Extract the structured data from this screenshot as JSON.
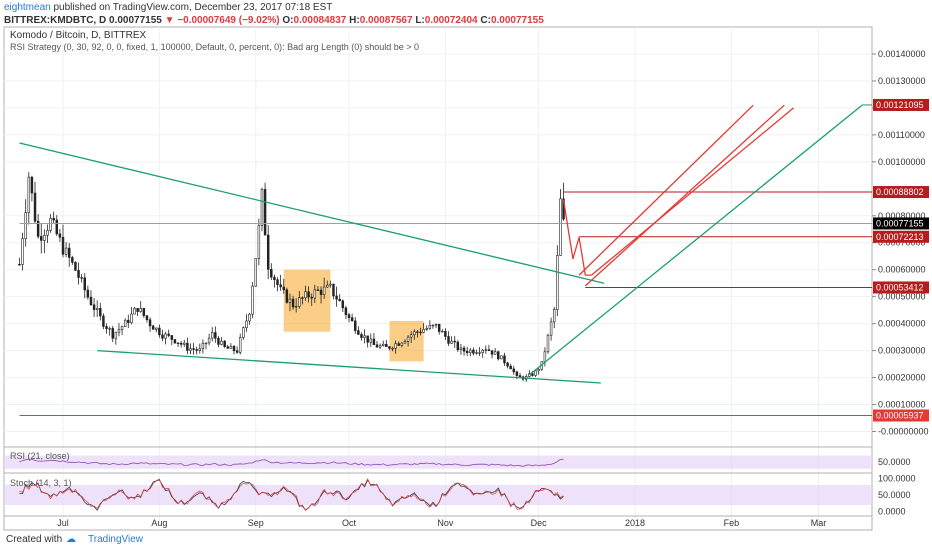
{
  "header": {
    "username": "eightmean",
    "published_text": "published on TradingView.com, December 23, 2017 07:18 EST",
    "symbol_line": "BITTREX:KMDBTC, D",
    "last": "0.00077155",
    "change": "−0.00007649 (−9.02%)",
    "o_label": "O:",
    "o_value": "0.00084837",
    "h_label": "H:",
    "h_value": "0.00087567",
    "l_label": "L:",
    "l_value": "0.00072404",
    "c_label": "C:",
    "c_value": "0.00077155"
  },
  "chart_data": {
    "type": "candlestick",
    "title": "Komodo / Bitcoin, D, BITTREX",
    "subtitle": "RSI Strategy (0, 30, 92, 0, 0, fixed, 1, 100000, Default, 0, percent, 0): Bad arg Length (0) should be > 0",
    "x_ticks": [
      "Jul",
      "Aug",
      "Sep",
      "Oct",
      "Nov",
      "Dec",
      "2018",
      "Feb",
      "Mar"
    ],
    "x_tick_days": [
      14,
      45,
      76,
      106,
      137,
      167,
      198,
      229,
      257
    ],
    "ylim": [
      -5e-05,
      0.0015
    ],
    "y_ticks": [
      "0.00140000",
      "0.00130000",
      "0.00120000",
      "0.00110000",
      "0.00100000",
      "0.00080000",
      "0.00070000",
      "0.00060000",
      "0.00050000",
      "0.00040000",
      "0.00030000",
      "0.00020000",
      "0.00010000",
      "-0.00000000"
    ],
    "y_tick_values": [
      0.0014,
      0.0013,
      0.0012,
      0.0011,
      0.001,
      0.0008,
      0.0007,
      0.0006,
      0.0005,
      0.0004,
      0.0003,
      0.0002,
      0.0001,
      0.0
    ],
    "price_labels": [
      {
        "text": "0.00121095",
        "value": 0.00121095,
        "color": "#b71c1c"
      },
      {
        "text": "0.00088802",
        "value": 0.00088802,
        "color": "#b71c1c"
      },
      {
        "text": "0.00077155",
        "value": 0.00077155,
        "color": "#000000"
      },
      {
        "text": "0.00072213",
        "value": 0.00072213,
        "color": "#b71c1c"
      },
      {
        "text": "0.00053412",
        "value": 0.00053412,
        "color": "#b71c1c"
      },
      {
        "text": "0.00005937",
        "value": 5.937e-05,
        "color": "#e53935"
      }
    ],
    "close_anchors": [
      [
        0,
        0.00062
      ],
      [
        3,
        0.00095
      ],
      [
        6,
        0.00072
      ],
      [
        10,
        0.00078
      ],
      [
        14,
        0.00068
      ],
      [
        18,
        0.0006
      ],
      [
        22,
        0.0005
      ],
      [
        26,
        0.00042
      ],
      [
        30,
        0.00036
      ],
      [
        34,
        0.0004
      ],
      [
        38,
        0.00046
      ],
      [
        42,
        0.0004
      ],
      [
        46,
        0.00036
      ],
      [
        50,
        0.00034
      ],
      [
        54,
        0.00031
      ],
      [
        58,
        0.0003
      ],
      [
        62,
        0.00036
      ],
      [
        66,
        0.00031
      ],
      [
        70,
        0.0003
      ],
      [
        74,
        0.00045
      ],
      [
        77,
        0.00075
      ],
      [
        78,
        0.00087
      ],
      [
        80,
        0.00062
      ],
      [
        84,
        0.00052
      ],
      [
        88,
        0.00047
      ],
      [
        92,
        0.0005
      ],
      [
        96,
        0.00052
      ],
      [
        100,
        0.00053
      ],
      [
        103,
        0.00048
      ],
      [
        106,
        0.00042
      ],
      [
        110,
        0.00036
      ],
      [
        114,
        0.00032
      ],
      [
        118,
        0.00031
      ],
      [
        122,
        0.00033
      ],
      [
        126,
        0.00036
      ],
      [
        130,
        0.00038
      ],
      [
        134,
        0.00039
      ],
      [
        138,
        0.00034
      ],
      [
        142,
        0.0003
      ],
      [
        146,
        0.0003
      ],
      [
        150,
        0.00031
      ],
      [
        154,
        0.00028
      ],
      [
        158,
        0.00024
      ],
      [
        160,
        0.0002
      ],
      [
        163,
        0.0002
      ],
      [
        166,
        0.00022
      ],
      [
        168,
        0.00025
      ],
      [
        170,
        0.00035
      ],
      [
        172,
        0.00045
      ],
      [
        173,
        0.00064
      ],
      [
        174,
        0.00085
      ],
      [
        175,
        0.00077
      ]
    ],
    "trend_lines": [
      {
        "name": "upper-wedge",
        "color": "#1a9e73",
        "points": [
          [
            0,
            0.00107
          ],
          [
            188,
            0.00055
          ]
        ]
      },
      {
        "name": "lower-wedge",
        "color": "#1a9e73",
        "points": [
          [
            25,
            0.0003
          ],
          [
            187,
            0.00018
          ]
        ]
      },
      {
        "name": "support-rising",
        "color": "#1a9e73",
        "points": [
          [
            164,
            0.00021
          ],
          [
            271,
            0.00121
          ]
        ]
      },
      {
        "name": "channel-top",
        "color": "#e53935",
        "points": [
          [
            180,
            0.00058
          ],
          [
            236,
            0.00121
          ]
        ]
      },
      {
        "name": "channel-mid",
        "color": "#e53935",
        "points": [
          [
            182,
            0.00054
          ],
          [
            246,
            0.00121
          ]
        ]
      },
      {
        "name": "channel-bottom",
        "color": "#e53935",
        "points": [
          [
            184,
            0.00058
          ],
          [
            249,
            0.0012
          ]
        ]
      },
      {
        "name": "zigzag",
        "color": "#e53935",
        "points": [
          [
            175,
            0.00086
          ],
          [
            178,
            0.00064
          ],
          [
            180,
            0.00072
          ],
          [
            182,
            0.00058
          ],
          [
            184,
            0.00058
          ]
        ]
      }
    ],
    "horizontal_levels": [
      {
        "value": 0.00121095,
        "color": "#1a9e73",
        "from_day": 271
      },
      {
        "value": 0.00088802,
        "color": "#b71c1c",
        "from_day": 175
      },
      {
        "value": 0.00072213,
        "color": "#b71c1c",
        "from_day": 180
      },
      {
        "value": 0.00053412,
        "color": "#b71c1c",
        "from_day": 182
      },
      {
        "value": 0.00077155,
        "color": "#9e9e9e",
        "from_day": 0
      },
      {
        "value": 5.937e-05,
        "color": "#e53935",
        "from_day": 0
      }
    ],
    "boxes": [
      {
        "x0": 85,
        "x1": 100,
        "y0": 0.00037,
        "y1": 0.0006,
        "color": "#f5a623"
      },
      {
        "x0": 119,
        "x1": 130,
        "y0": 0.00026,
        "y1": 0.00041,
        "color": "#f5a623"
      }
    ],
    "rsi": {
      "label": "RSI (21, close)",
      "ytick": "50.0000",
      "ytick_value": 50,
      "band": [
        30,
        70
      ],
      "ylim": [
        20,
        90
      ]
    },
    "stoch": {
      "label": "Stoch (14, 3, 1)",
      "y_ticks": [
        "100.0000",
        "50.0000",
        "0.0000"
      ],
      "y_tick_values": [
        100,
        50,
        0
      ],
      "band": [
        20,
        80
      ],
      "ylim": [
        -10,
        110
      ]
    }
  },
  "footer": {
    "created_with": "Created with",
    "brand": "TradingView"
  }
}
